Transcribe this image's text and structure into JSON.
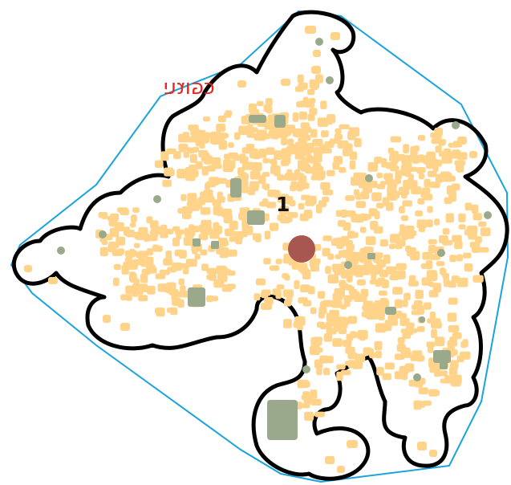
{
  "map": {
    "place_label": "כפוגה",
    "cluster_number": "1",
    "colors": {
      "hull": "#1aa3dc",
      "boundary": "#000000",
      "building": "#ffd48a",
      "green_feature": "#9aa88c",
      "centroid": "#a85750",
      "place_label": "#e8231c"
    },
    "icons": [
      "centroid-marker"
    ]
  }
}
